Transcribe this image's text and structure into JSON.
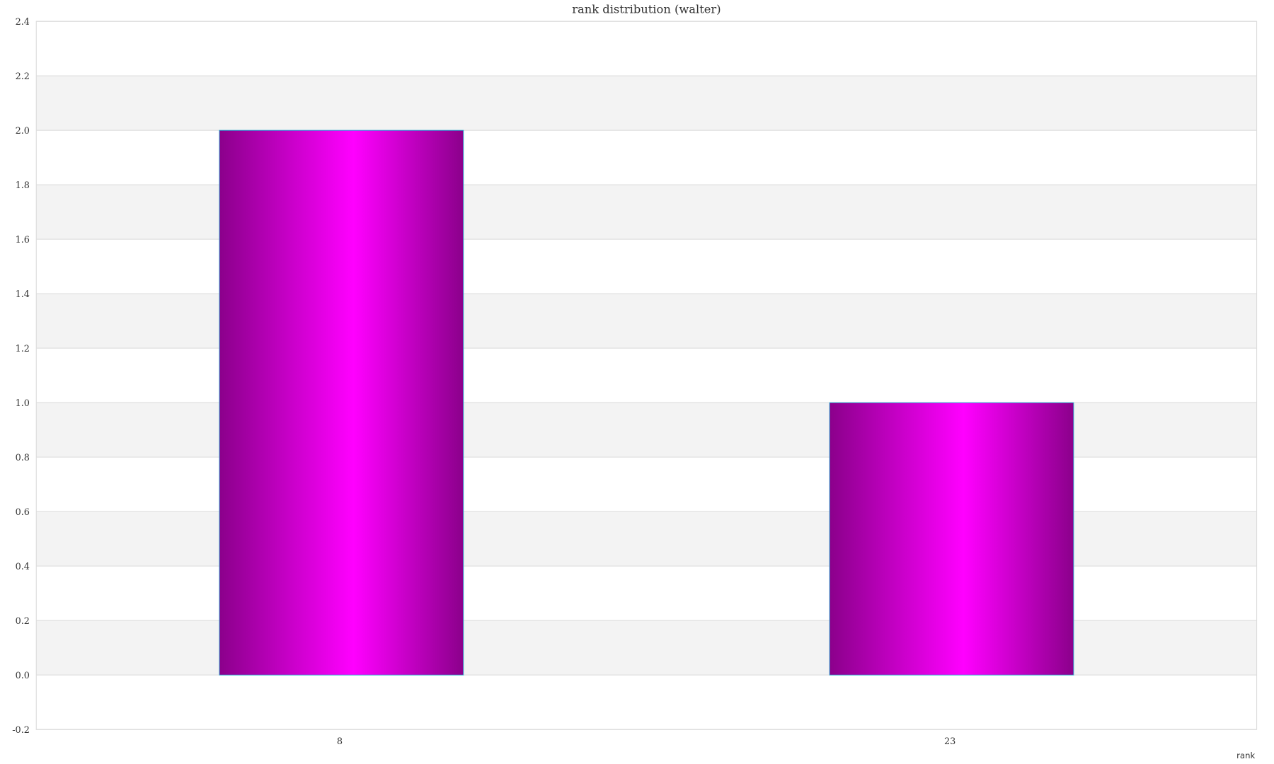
{
  "chart_data": {
    "type": "bar",
    "title": "rank distribution (walter)",
    "xlabel": "rank",
    "ylabel": "",
    "categories": [
      "8",
      "23"
    ],
    "values": [
      2,
      1
    ],
    "ylim": [
      -0.2,
      2.4
    ],
    "yticks": [
      "-0.2",
      "0.0",
      "0.2",
      "0.4",
      "0.6",
      "0.8",
      "1.0",
      "1.2",
      "1.4",
      "1.6",
      "1.8",
      "2.0",
      "2.2",
      "2.4"
    ],
    "grid": true,
    "legend": "none",
    "colors": {
      "bar_edge": "#8b008b",
      "bar_center": "#ff00ff",
      "bar_border": "#29b6d6",
      "band": "#f3f3f3",
      "grid": "#dddddd"
    }
  }
}
